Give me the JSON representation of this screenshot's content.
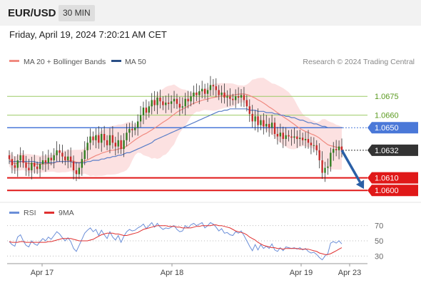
{
  "header": {
    "symbol": "EUR/USD",
    "timeframe": "30 MIN"
  },
  "datetime": "Friday, April 19, 2024 7:20:21 AM CET",
  "legend": {
    "bb_label": "MA 20 + Bollinger Bands",
    "ma50_label": "MA 50"
  },
  "copyright": "Research © 2024 Trading Central",
  "colors": {
    "bull": "#2e7d1e",
    "bear": "#c62828",
    "ma20": "#f08a80",
    "bb_fill": "#fbd7d7",
    "ma50": "#5a7ec8",
    "green_level": "#9ccc65",
    "blue_level": "#4a78d8",
    "red_level": "#e01818",
    "current_tag": "#333333",
    "arrow": "#2a5fa6",
    "rsi": "#6a8ed8",
    "rsi_ma": "#e03030"
  },
  "chart_data": {
    "type": "candlestick",
    "ylim": [
      1.0595,
      1.0695
    ],
    "x_labels": [
      "Apr 17",
      "Apr 18",
      "Apr 19",
      "Apr 23"
    ],
    "levels": [
      {
        "value": 1.0675,
        "label": "1.0675",
        "kind": "green"
      },
      {
        "value": 1.066,
        "label": "1.0660",
        "kind": "green"
      },
      {
        "value": 1.065,
        "label": "1.0650",
        "kind": "blue"
      },
      {
        "value": 1.061,
        "label": "1.0610",
        "kind": "red"
      },
      {
        "value": 1.06,
        "label": "1.0600",
        "kind": "red"
      }
    ],
    "current_price": {
      "value": 1.0632,
      "label": "1.0632"
    },
    "forecast_target": 1.06,
    "closes": [
      1.0625,
      1.062,
      1.0618,
      1.0624,
      1.0628,
      1.0622,
      1.0618,
      1.0616,
      1.0622,
      1.0619,
      1.0617,
      1.0621,
      1.0624,
      1.0622,
      1.0626,
      1.0624,
      1.0628,
      1.0632,
      1.063,
      1.0627,
      1.0624,
      1.0627,
      1.0623,
      1.0616,
      1.0613,
      1.0618,
      1.0625,
      1.0632,
      1.0638,
      1.0643,
      1.064,
      1.0644,
      1.0638,
      1.0645,
      1.064,
      1.0636,
      1.0644,
      1.0638,
      1.0635,
      1.064,
      1.0633,
      1.064,
      1.0646,
      1.0649,
      1.0648,
      1.065,
      1.0655,
      1.066,
      1.0666,
      1.0662,
      1.0667,
      1.0672,
      1.0668,
      1.0674,
      1.0671,
      1.0668,
      1.067,
      1.0669,
      1.0671,
      1.0673,
      1.0669,
      1.0666,
      1.0667,
      1.0673,
      1.0671,
      1.0675,
      1.0678,
      1.0676,
      1.0679,
      1.0681,
      1.0677,
      1.068,
      1.0684,
      1.0683,
      1.068,
      1.0676,
      1.0678,
      1.0674,
      1.0675,
      1.0673,
      1.0672,
      1.0675,
      1.0674,
      1.0676,
      1.0672,
      1.0667,
      1.0661,
      1.0655,
      1.0659,
      1.0652,
      1.0656,
      1.0651,
      1.0653,
      1.065,
      1.0654,
      1.0645,
      1.0643,
      1.0646,
      1.0641,
      1.0644,
      1.0643,
      1.0642,
      1.0643,
      1.0641,
      1.0642,
      1.064,
      1.0641,
      1.0638,
      1.0636,
      1.0636,
      1.0632,
      1.0624,
      1.0614,
      1.0618,
      1.0619,
      1.063,
      1.0633,
      1.0632,
      1.0635,
      1.0632
    ],
    "ma50": [
      1.0623,
      1.0623,
      1.0623,
      1.0623,
      1.0623,
      1.0623,
      1.0623,
      1.0623,
      1.0623,
      1.0623,
      1.0622,
      1.0622,
      1.0622,
      1.0622,
      1.0622,
      1.0622,
      1.0622,
      1.0623,
      1.0623,
      1.0623,
      1.0623,
      1.0623,
      1.0623,
      1.0622,
      1.0622,
      1.0622,
      1.0622,
      1.0622,
      1.0623,
      1.0623,
      1.0624,
      1.0624,
      1.0624,
      1.0625,
      1.0625,
      1.0626,
      1.0626,
      1.0627,
      1.0627,
      1.0628,
      1.0628,
      1.0629,
      1.063,
      1.063,
      1.0631,
      1.0632,
      1.0633,
      1.0634,
      1.0635,
      1.0636,
      1.0637,
      1.0638,
      1.064,
      1.0641,
      1.0642,
      1.0643,
      1.0644,
      1.0645,
      1.0646,
      1.0647,
      1.0648,
      1.0649,
      1.065,
      1.0651,
      1.0652,
      1.0653,
      1.0654,
      1.0655,
      1.0656,
      1.0657,
      1.0658,
      1.0659,
      1.066,
      1.0661,
      1.0662,
      1.0663,
      1.0663,
      1.0664,
      1.0664,
      1.0665,
      1.0665,
      1.0665,
      1.0665,
      1.0665,
      1.0665,
      1.0665,
      1.0664,
      1.0664,
      1.0664,
      1.0663,
      1.0663,
      1.0663,
      1.0662,
      1.0662,
      1.0662,
      1.0661,
      1.0661,
      1.066,
      1.066,
      1.0659,
      1.0659,
      1.0658,
      1.0658,
      1.0657,
      1.0656,
      1.0656,
      1.0655,
      1.0654,
      1.0654,
      1.0653,
      1.0653,
      1.0652,
      1.0651,
      1.0651,
      1.065,
      1.065,
      1.065,
      1.065,
      1.065,
      1.065
    ],
    "rsi": {
      "levels": [
        70,
        50,
        30
      ],
      "ylim": [
        20,
        80
      ],
      "series": [
        {
          "name": "RSI",
          "values": [
            49,
            45,
            43,
            55,
            58,
            50,
            44,
            42,
            50,
            46,
            44,
            49,
            53,
            50,
            55,
            52,
            57,
            62,
            59,
            54,
            50,
            54,
            49,
            40,
            36,
            44,
            52,
            60,
            64,
            67,
            62,
            65,
            57,
            64,
            58,
            53,
            62,
            55,
            51,
            57,
            48,
            56,
            62,
            65,
            63,
            64,
            67,
            69,
            72,
            66,
            70,
            74,
            68,
            73,
            68,
            65,
            67,
            66,
            68,
            70,
            65,
            62,
            63,
            70,
            67,
            71,
            73,
            70,
            72,
            74,
            67,
            70,
            74,
            72,
            68,
            63,
            66,
            60,
            61,
            58,
            57,
            62,
            60,
            63,
            57,
            50,
            43,
            37,
            45,
            38,
            45,
            40,
            43,
            40,
            46,
            38,
            36,
            41,
            37,
            42,
            41,
            40,
            41,
            39,
            41,
            38,
            40,
            36,
            34,
            35,
            32,
            28,
            25,
            30,
            33,
            47,
            49,
            47,
            50,
            46
          ]
        },
        {
          "name": "9MA",
          "values": [
            49,
            48,
            48,
            48,
            49,
            49,
            48,
            48,
            48,
            48,
            48,
            48,
            48,
            48,
            49,
            49,
            50,
            51,
            52,
            53,
            53,
            53,
            53,
            52,
            51,
            50,
            50,
            50,
            50,
            51,
            52,
            54,
            56,
            58,
            59,
            60,
            60,
            60,
            59,
            59,
            58,
            57,
            57,
            58,
            59,
            60,
            61,
            63,
            65,
            66,
            67,
            68,
            69,
            70,
            70,
            70,
            70,
            69,
            69,
            69,
            68,
            68,
            67,
            67,
            67,
            67,
            68,
            69,
            69,
            70,
            70,
            70,
            70,
            71,
            71,
            70,
            70,
            69,
            68,
            67,
            65,
            63,
            62,
            61,
            60,
            58,
            55,
            53,
            51,
            48,
            46,
            44,
            43,
            42,
            41,
            41,
            40,
            40,
            39,
            40,
            40,
            40,
            40,
            40,
            39,
            39,
            39,
            39,
            38,
            37,
            36,
            34,
            33,
            32,
            32,
            33,
            35,
            37,
            39,
            41
          ]
        }
      ]
    }
  }
}
